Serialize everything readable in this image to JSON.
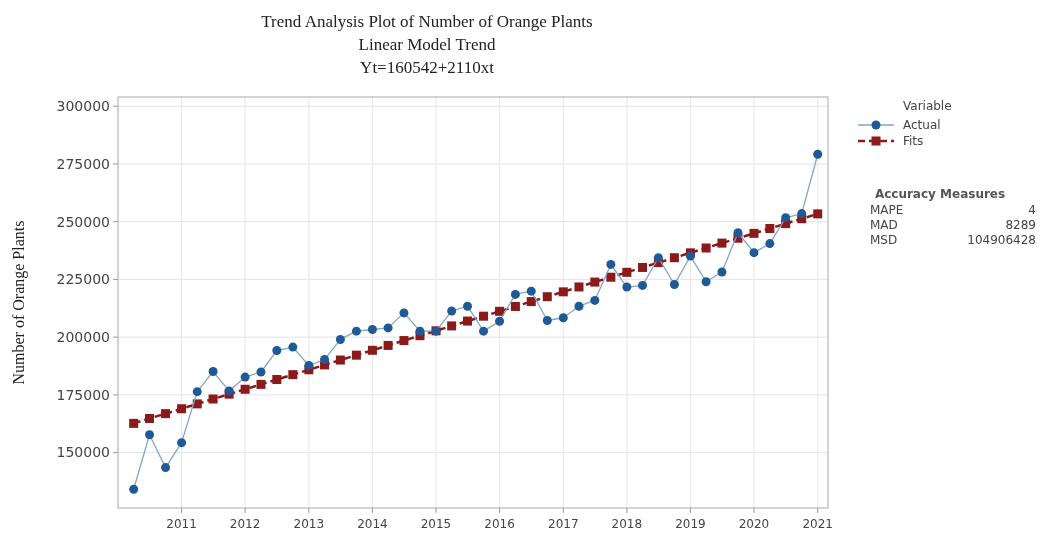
{
  "chart_data": {
    "type": "line",
    "title": "Trend Analysis Plot of Number of Orange Plants",
    "subtitle": "Linear Model Trend",
    "ylabel": "Number of Orange Plants",
    "legend_title": "Variable",
    "annotations": [
      "Yt=160542+2110xt",
      "Accuracy Measures",
      "MAPE 4",
      "MAD 8289",
      "MSD 104906428"
    ],
    "x": [
      "2010-04",
      "2010-07",
      "2010-10",
      "2011-01",
      "2011-04",
      "2011-07",
      "2011-10",
      "2012-01",
      "2012-04",
      "2012-07",
      "2012-10",
      "2013-01",
      "2013-04",
      "2013-07",
      "2013-10",
      "2014-01",
      "2014-04",
      "2014-07",
      "2014-10",
      "2015-01",
      "2015-04",
      "2015-07",
      "2015-10",
      "2016-01",
      "2016-04",
      "2016-07",
      "2016-10",
      "2017-01",
      "2017-04",
      "2017-07",
      "2017-10",
      "2018-01",
      "2018-04",
      "2018-07",
      "2018-10",
      "2019-01",
      "2019-04",
      "2019-07",
      "2019-10",
      "2020-01",
      "2020-04",
      "2020-07",
      "2020-10",
      "2021-01"
    ],
    "series": [
      {
        "name": "Actual",
        "color": "#1f5a96",
        "marker": "circle",
        "line_style": "solid",
        "values": [
          134100,
          157700,
          143500,
          154300,
          176400,
          185100,
          176700,
          182700,
          184900,
          194200,
          195700,
          187700,
          190300,
          199000,
          202600,
          203300,
          204000,
          210500,
          202600,
          202600,
          211300,
          213400,
          202600,
          206900,
          218500,
          219900,
          207200,
          208400,
          213400,
          215900,
          231500,
          221700,
          222400,
          234400,
          222800,
          235100,
          224000,
          228200,
          245200,
          236600,
          240500,
          251700,
          253500,
          279200
        ]
      },
      {
        "name": "Fits",
        "color": "#8b1a1a",
        "marker": "square",
        "line_style": "dashed",
        "values": [
          162652,
          164762,
          166872,
          168982,
          171092,
          173202,
          175312,
          177422,
          179532,
          181642,
          183752,
          185862,
          187972,
          190082,
          192192,
          194302,
          196412,
          198522,
          200632,
          202742,
          204852,
          206962,
          209072,
          211182,
          213292,
          215402,
          217512,
          219622,
          221732,
          223842,
          225952,
          228062,
          230172,
          232282,
          234392,
          236502,
          238612,
          240722,
          242832,
          244942,
          247052,
          249162,
          251272,
          253382
        ]
      }
    ],
    "xlim": [
      "2010-01",
      "2021-03"
    ],
    "xticks": [
      "2011",
      "2012",
      "2013",
      "2014",
      "2015",
      "2016",
      "2017",
      "2018",
      "2019",
      "2020",
      "2021"
    ],
    "ylim": [
      126000,
      304000
    ],
    "yticks": [
      150000,
      175000,
      200000,
      225000,
      250000,
      275000,
      300000
    ],
    "grid": true,
    "legend": "top right"
  }
}
